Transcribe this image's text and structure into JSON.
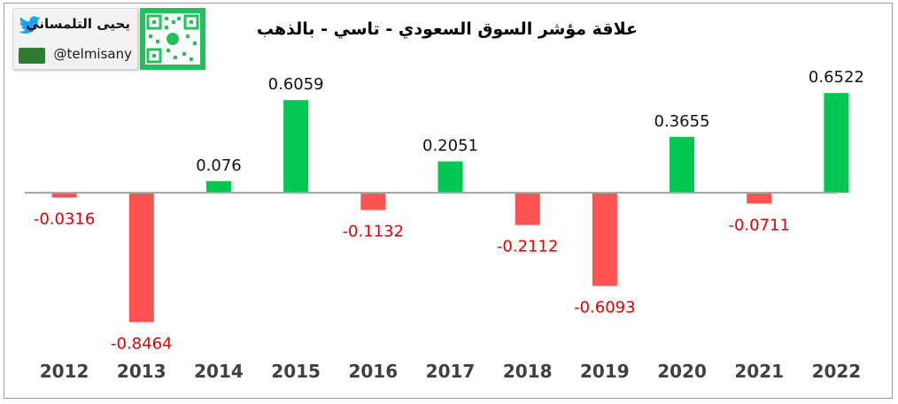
{
  "header": {
    "title": "علاقة مؤشر السوق السعودي - تاسي - بالذهب",
    "logo_name": "يحيى التلمساني",
    "logo_handle": "@telmisany"
  },
  "colors": {
    "positive": "#00c853",
    "negative": "#ff5252",
    "positive_label": "#111111",
    "negative_label": "#e00000",
    "axis": "#a6a6a6"
  },
  "chart_data": {
    "type": "bar",
    "title": "علاقة مؤشر السوق السعودي - تاسي - بالذهب",
    "xlabel": "",
    "ylabel": "",
    "categories": [
      "2012",
      "2013",
      "2014",
      "2015",
      "2016",
      "2017",
      "2018",
      "2019",
      "2020",
      "2021",
      "2022"
    ],
    "values": [
      -0.0316,
      -0.8464,
      0.076,
      0.6059,
      -0.1132,
      0.2051,
      -0.2112,
      -0.6093,
      0.3655,
      -0.0711,
      0.6522
    ],
    "value_labels": [
      "-0.0316",
      "-0.8464",
      "0.076",
      "0.6059",
      "-0.1132",
      "0.2051",
      "-0.2112",
      "-0.6093",
      "0.3655",
      "-0.0711",
      "0.6522"
    ],
    "ylim": [
      -1.0,
      0.8
    ],
    "grid": false,
    "legend": "none"
  }
}
